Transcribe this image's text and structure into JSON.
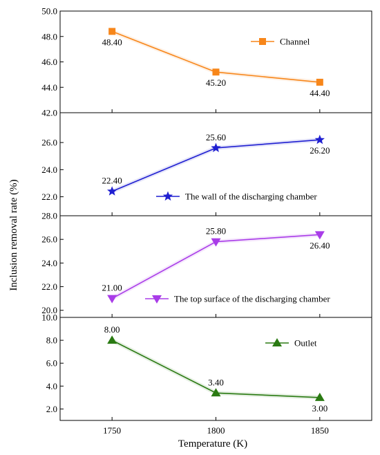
{
  "chart_data": {
    "type": "line",
    "xlabel": "Temperature (K)",
    "ylabel": "Inclusion removal rate (%)",
    "x_ticks": [
      "1750",
      "1800",
      "1850"
    ],
    "xlim": [
      1725,
      1875
    ],
    "grid": false,
    "panels": [
      {
        "legend": "Channel",
        "legend_position": "top-right",
        "color": "#f7861a",
        "marker": "square",
        "ylim": [
          42.0,
          50.0
        ],
        "y_ticks": [
          "42.0",
          "44.0",
          "46.0",
          "48.0",
          "50.0"
        ],
        "x": [
          1750,
          1800,
          1850
        ],
        "values": [
          48.4,
          45.2,
          44.4
        ],
        "data_labels": [
          "48.40",
          "45.20",
          "44.40"
        ]
      },
      {
        "legend": "The wall of the discharging chamber",
        "legend_position": "bottom-right",
        "color": "#1f1fd1",
        "marker": "star",
        "ylim": [
          20.6,
          28.2
        ],
        "y_ticks": [
          "22.0",
          "24.0",
          "26.0"
        ],
        "x": [
          1750,
          1800,
          1850
        ],
        "values": [
          22.4,
          25.6,
          26.2
        ],
        "data_labels": [
          "22.40",
          "25.60",
          "26.20"
        ]
      },
      {
        "legend": "The top surface of the discharging chamber",
        "legend_position": "bottom-right",
        "color": "#a93ce8",
        "marker": "triangle-down",
        "ylim": [
          19.4,
          28.0
        ],
        "y_ticks": [
          "20.0",
          "22.0",
          "24.0",
          "26.0",
          "28.0"
        ],
        "x": [
          1750,
          1800,
          1850
        ],
        "values": [
          21.0,
          25.8,
          26.4
        ],
        "data_labels": [
          "21.00",
          "25.80",
          "26.40"
        ]
      },
      {
        "legend": "Outlet",
        "legend_position": "top-right",
        "color": "#2a7a12",
        "marker": "triangle-up",
        "ylim": [
          1.0,
          10.0
        ],
        "y_ticks": [
          "2.0",
          "4.0",
          "6.0",
          "8.0",
          "10.0"
        ],
        "x": [
          1750,
          1800,
          1850
        ],
        "values": [
          8.0,
          3.4,
          3.0
        ],
        "data_labels": [
          "8.00",
          "3.40",
          "3.00"
        ]
      }
    ]
  }
}
